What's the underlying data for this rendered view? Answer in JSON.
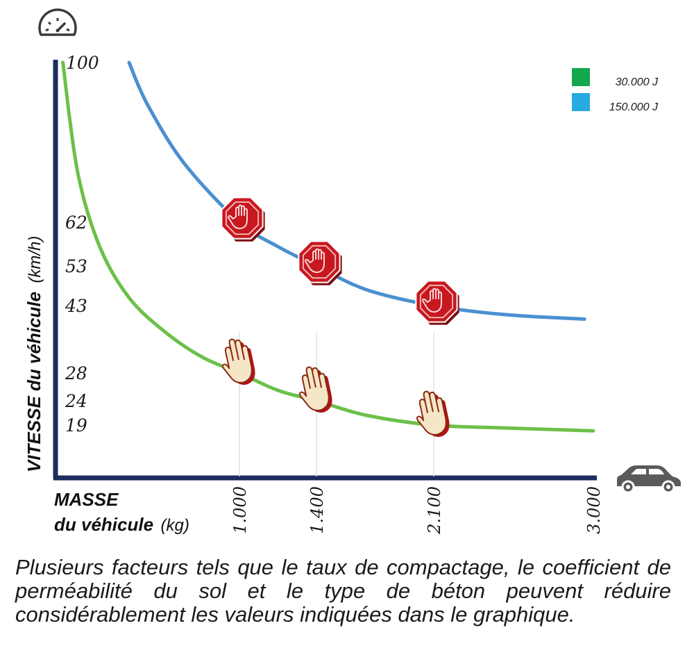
{
  "chart_data": {
    "type": "line",
    "xlabel_bold": "MASSE",
    "xlabel_rest": "du véhicule",
    "xlabel_unit": "(kg)",
    "ylabel_bold": "VITESSE du véhicule",
    "ylabel_unit": "(km/h)",
    "xlim": [
      500,
      3000
    ],
    "ylim": [
      0,
      100
    ],
    "x_ticks": [
      {
        "value": 1000,
        "label": "1.000"
      },
      {
        "value": 1400,
        "label": "1.400"
      },
      {
        "value": 2100,
        "label": "2.100"
      },
      {
        "value": 3000,
        "label": "3.000"
      }
    ],
    "y_ticks": [
      {
        "value": 100,
        "label": "100"
      },
      {
        "value": 62,
        "label": "62"
      },
      {
        "value": 53,
        "label": "53"
      },
      {
        "value": 43,
        "label": "43"
      },
      {
        "value": 28,
        "label": "28"
      },
      {
        "value": 24,
        "label": "24"
      },
      {
        "value": 19,
        "label": "19"
      }
    ],
    "legend_position": "top-right",
    "series": [
      {
        "name": "30.000 J",
        "legend_color": "#12a84e",
        "line_color": "#6cc04a",
        "x": [
          520,
          560,
          620,
          700,
          800,
          900,
          1000,
          1200,
          1400,
          1700,
          2100,
          2500,
          3000
        ],
        "y": [
          100,
          74,
          57,
          45,
          37,
          31.5,
          28,
          25.5,
          24,
          21,
          19,
          18,
          17
        ],
        "markers": [
          {
            "x": 1000,
            "y": 28
          },
          {
            "x": 1400,
            "y": 24
          },
          {
            "x": 2100,
            "y": 19
          }
        ],
        "marker_icon": "raised-hand-icon"
      },
      {
        "name": "150.000 J",
        "legend_color": "#27a9e1",
        "line_color": "#4a90d0",
        "x": [
          700,
          750,
          850,
          1000,
          1200,
          1400,
          1700,
          2100,
          2500,
          2950
        ],
        "y": [
          100,
          90,
          76,
          62,
          57,
          53,
          47,
          43,
          41,
          40
        ],
        "markers": [
          {
            "x": 1000,
            "y": 62
          },
          {
            "x": 1400,
            "y": 53
          },
          {
            "x": 2100,
            "y": 43
          }
        ],
        "marker_icon": "stop-sign-hand-icon"
      }
    ]
  },
  "icons": {
    "top": "speedometer-icon",
    "corner": "car-icon"
  },
  "caption": "Plusieurs facteurs tels que le taux de compactage, le coefficient de perméabilité du sol et le type de béton peuvent réduire considérablement les valeurs indiquées dans le graphique.",
  "colors": {
    "axis": "#1b2d5e",
    "stop_sign": "#c8171e",
    "hand": "#f6e6c8"
  }
}
